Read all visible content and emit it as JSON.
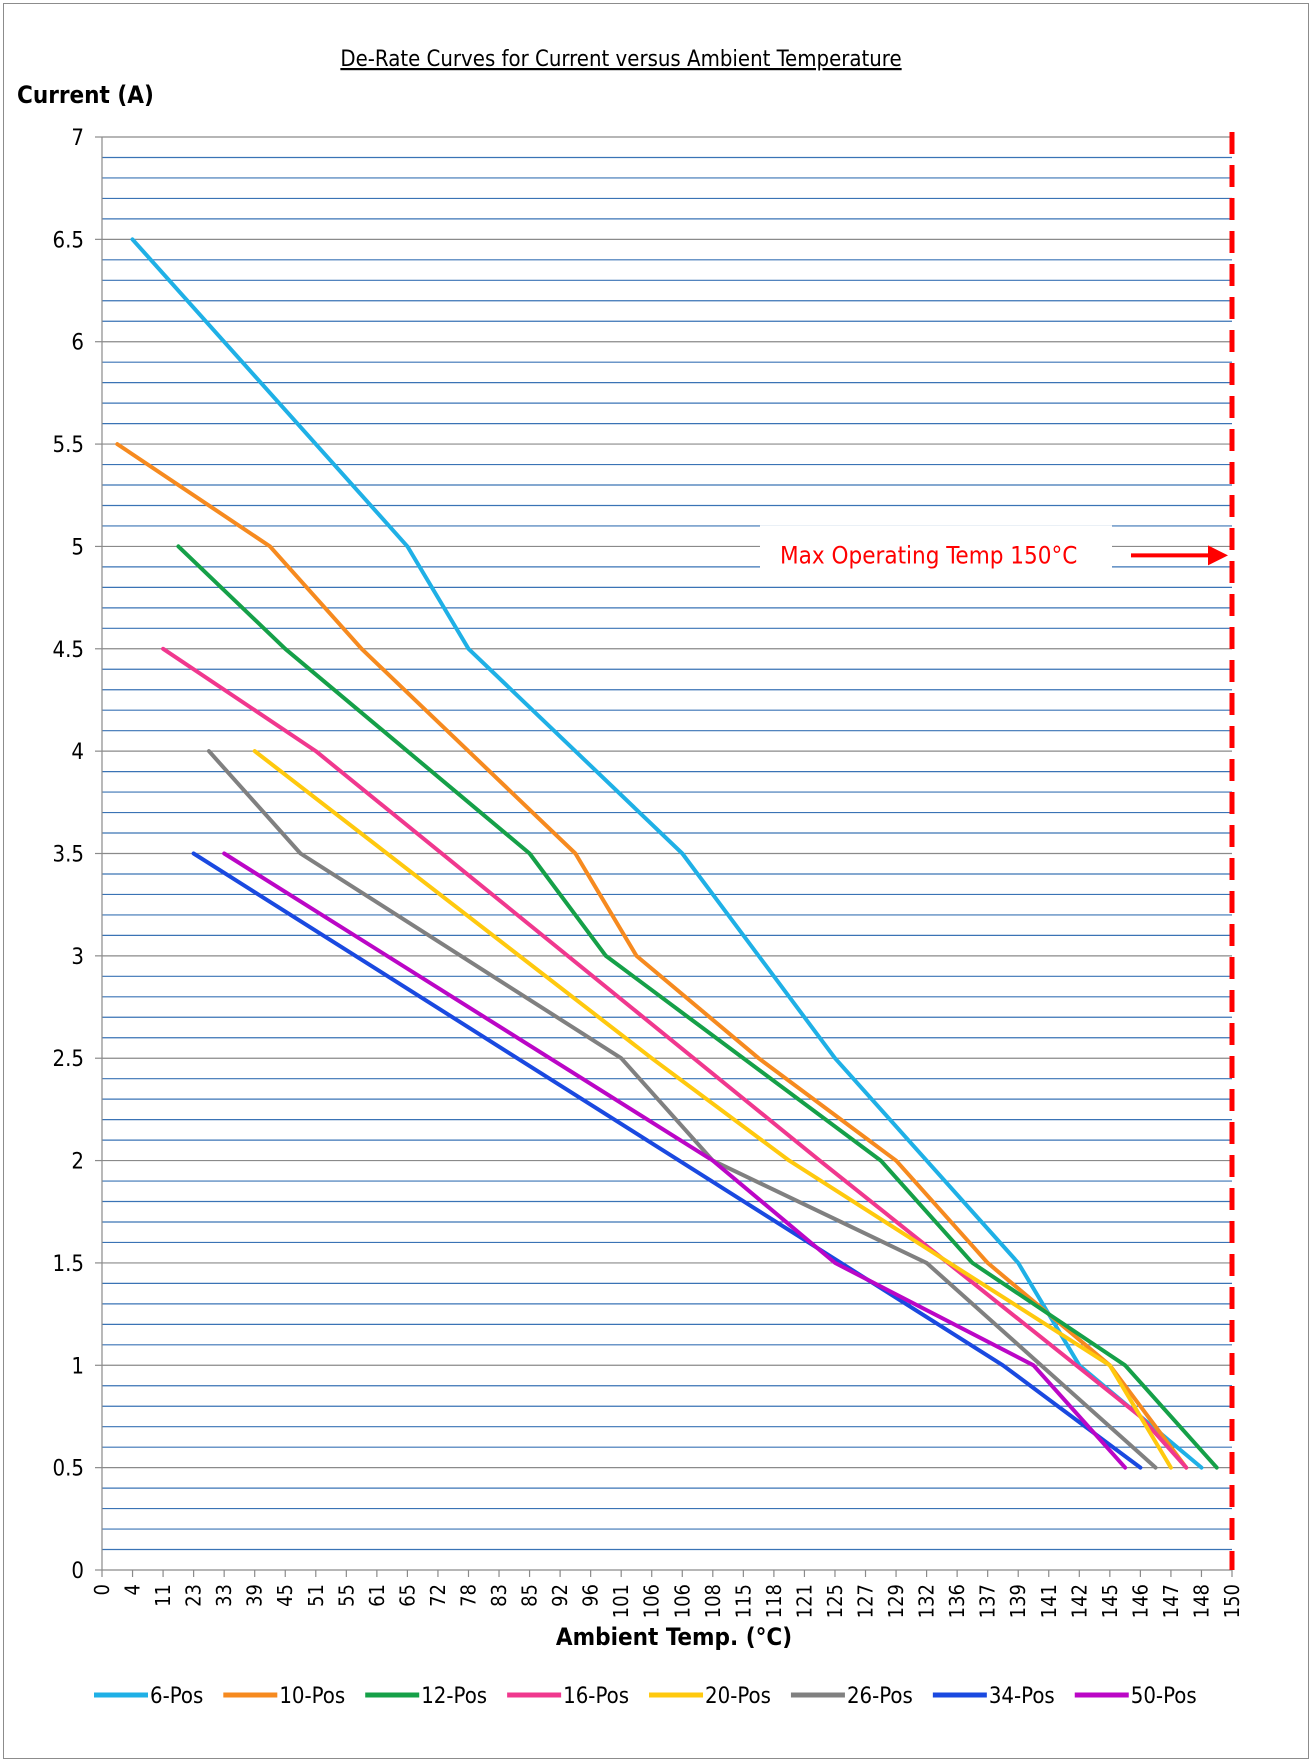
{
  "chart_data": {
    "type": "line",
    "title": "De-Rate Curves for Current versus Ambient Temperature",
    "ylabel": "Current (A)",
    "xlabel": "Ambient Temp. (°C)",
    "ylim": [
      0,
      7
    ],
    "y_ticks": [
      "0",
      "0.5",
      "1",
      "1.5",
      "2",
      "2.5",
      "3",
      "3.5",
      "4",
      "4.5",
      "5",
      "5.5",
      "6",
      "6.5",
      "7"
    ],
    "x_ticks": [
      "0",
      "4",
      "11",
      "23",
      "33",
      "39",
      "45",
      "51",
      "55",
      "61",
      "65",
      "72",
      "78",
      "83",
      "85",
      "92",
      "96",
      "101",
      "106",
      "106",
      "108",
      "115",
      "118",
      "121",
      "125",
      "127",
      "129",
      "132",
      "136",
      "137",
      "139",
      "141",
      "142",
      "145",
      "146",
      "147",
      "148",
      "150"
    ],
    "x_axis_type": "category",
    "gridlines": "horizontal",
    "legend_position": "bottom",
    "series": [
      {
        "name": "6-Pos",
        "color": "#1fb0e6",
        "points": [
          [
            1,
            6.5
          ],
          [
            10,
            5.0
          ],
          [
            12,
            4.5
          ],
          [
            19,
            3.5
          ],
          [
            24,
            2.5
          ],
          [
            30,
            1.5
          ],
          [
            32,
            1.0
          ],
          [
            36,
            0.5
          ]
        ]
      },
      {
        "name": "10-Pos",
        "color": "#f68a1f",
        "points": [
          [
            0.5,
            5.5
          ],
          [
            5.5,
            5.0
          ],
          [
            8.5,
            4.5
          ],
          [
            15.5,
            3.5
          ],
          [
            17.5,
            3.0
          ],
          [
            21.5,
            2.5
          ],
          [
            26,
            2.0
          ],
          [
            29,
            1.5
          ],
          [
            33,
            1.0
          ],
          [
            35.5,
            0.5
          ]
        ]
      },
      {
        "name": "12-Pos",
        "color": "#15a048",
        "points": [
          [
            2.5,
            5.0
          ],
          [
            6,
            4.5
          ],
          [
            14,
            3.5
          ],
          [
            16.5,
            3.0
          ],
          [
            25.5,
            2.0
          ],
          [
            28.5,
            1.5
          ],
          [
            31,
            1.25
          ],
          [
            33.5,
            1.0
          ],
          [
            36.5,
            0.5
          ]
        ]
      },
      {
        "name": "16-Pos",
        "color": "#f0388e",
        "points": [
          [
            2,
            4.5
          ],
          [
            7,
            4.0
          ],
          [
            23.5,
            2.0
          ],
          [
            34,
            0.75
          ],
          [
            35.5,
            0.5
          ]
        ]
      },
      {
        "name": "20-Pos",
        "color": "#ffc90e",
        "points": [
          [
            5,
            4.0
          ],
          [
            18,
            2.5
          ],
          [
            22.5,
            2.0
          ],
          [
            33,
            1.0
          ],
          [
            35,
            0.5
          ]
        ]
      },
      {
        "name": "26-Pos",
        "color": "#808080",
        "points": [
          [
            3.5,
            4.0
          ],
          [
            6.5,
            3.5
          ],
          [
            17,
            2.5
          ],
          [
            20,
            2.0
          ],
          [
            27,
            1.5
          ],
          [
            34.5,
            0.5
          ]
        ]
      },
      {
        "name": "34-Pos",
        "color": "#1a49e0",
        "points": [
          [
            3,
            3.5
          ],
          [
            29.5,
            1.0
          ],
          [
            34,
            0.5
          ]
        ]
      },
      {
        "name": "50-Pos",
        "color": "#bb06c6",
        "points": [
          [
            4,
            3.5
          ],
          [
            20,
            2.0
          ],
          [
            24,
            1.5
          ],
          [
            30.5,
            1.0
          ],
          [
            33.5,
            0.5
          ]
        ]
      }
    ],
    "annotation": {
      "text": "Max Operating Temp 150°C",
      "color": "#ff0000",
      "marker_x_label": "150"
    }
  }
}
